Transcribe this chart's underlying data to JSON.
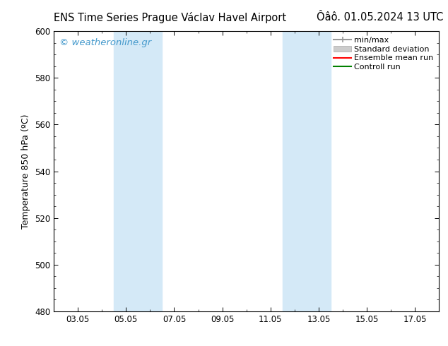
{
  "title_left": "ENS Time Series Prague Václav Havel Airport",
  "title_right": "Ôâô. 01.05.2024 13 UTC",
  "ylabel": "Temperature 850 hPa (ºC)",
  "ylim": [
    480,
    600
  ],
  "yticks": [
    480,
    500,
    520,
    540,
    560,
    580,
    600
  ],
  "xtick_labels": [
    "03.05",
    "05.05",
    "07.05",
    "09.05",
    "11.05",
    "13.05",
    "15.05",
    "17.05"
  ],
  "xtick_positions": [
    2,
    4,
    6,
    8,
    10,
    12,
    14,
    16
  ],
  "xlim": [
    1,
    17
  ],
  "shaded_bands": [
    {
      "x_start": 3.5,
      "x_end": 5.5
    },
    {
      "x_start": 10.5,
      "x_end": 12.5
    }
  ],
  "band_color": "#d4e9f7",
  "legend_entries": [
    {
      "label": "min/max",
      "color": "#999999",
      "lw": 1.5,
      "type": "line_with_caps"
    },
    {
      "label": "Standard deviation",
      "color": "#cccccc",
      "lw": 8,
      "type": "band"
    },
    {
      "label": "Ensemble mean run",
      "color": "red",
      "lw": 1.5,
      "type": "line"
    },
    {
      "label": "Controll run",
      "color": "green",
      "lw": 1.5,
      "type": "line"
    }
  ],
  "watermark_text": "© weatheronline.gr",
  "watermark_color": "#4499cc",
  "background_color": "#ffffff",
  "title_fontsize": 10.5,
  "ylabel_fontsize": 9,
  "tick_fontsize": 8.5,
  "legend_fontsize": 8,
  "watermark_fontsize": 9.5
}
